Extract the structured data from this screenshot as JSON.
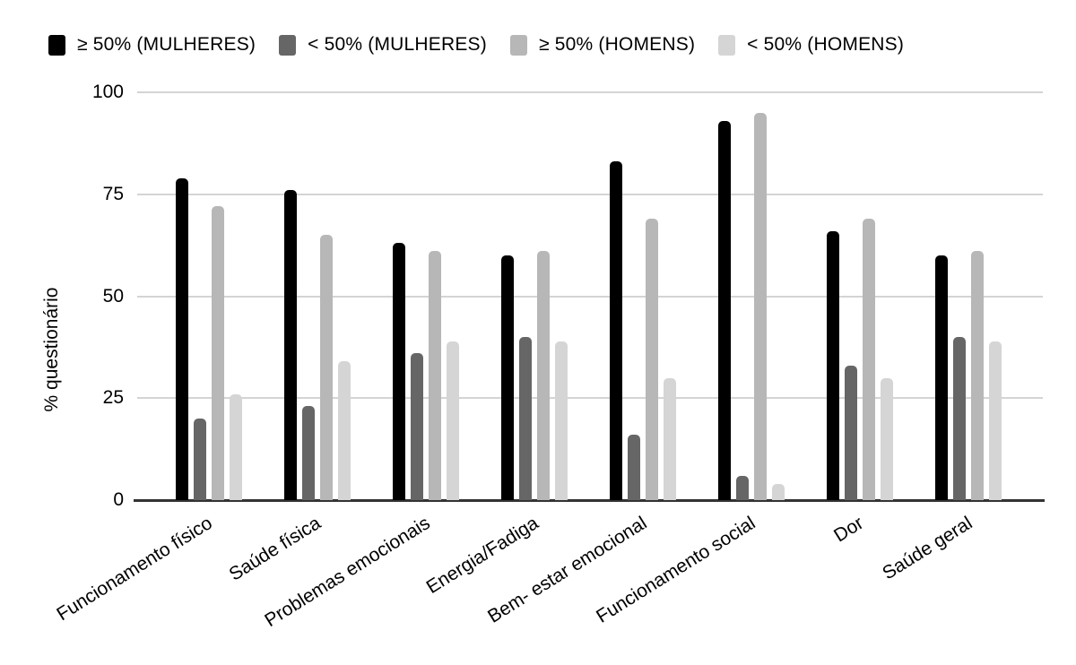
{
  "chart_data": {
    "type": "bar",
    "title": "",
    "ylabel": "% questionário",
    "xlabel": "",
    "ylim": [
      0,
      100
    ],
    "yticks": [
      0,
      25,
      50,
      75,
      100
    ],
    "grid": true,
    "legend_position": "top",
    "categories": [
      "Funcionamento físico",
      "Saúde física",
      "Problemas emocionais",
      "Energia/Fadiga",
      "Bem- estar emocional",
      "Funcionamento social",
      "Dor",
      "Saúde geral"
    ],
    "series": [
      {
        "name": "≥ 50% (MULHERES)",
        "color": "#000000",
        "values": [
          79,
          76,
          63,
          60,
          83,
          93,
          66,
          60
        ]
      },
      {
        "name": "< 50% (MULHERES)",
        "color": "#666666",
        "values": [
          20,
          23,
          36,
          40,
          16,
          6,
          33,
          40
        ]
      },
      {
        "name": "≥ 50% (HOMENS)",
        "color": "#b7b7b7",
        "values": [
          72,
          65,
          61,
          61,
          69,
          95,
          69,
          61
        ]
      },
      {
        "name": "< 50% (HOMENS)",
        "color": "#d5d5d5",
        "values": [
          26,
          34,
          39,
          39,
          30,
          4,
          30,
          39
        ]
      }
    ],
    "colors": {
      "gridline": "#d4d4d4",
      "axis_line": "#333333",
      "text": "#000000",
      "background": "#ffffff"
    }
  }
}
